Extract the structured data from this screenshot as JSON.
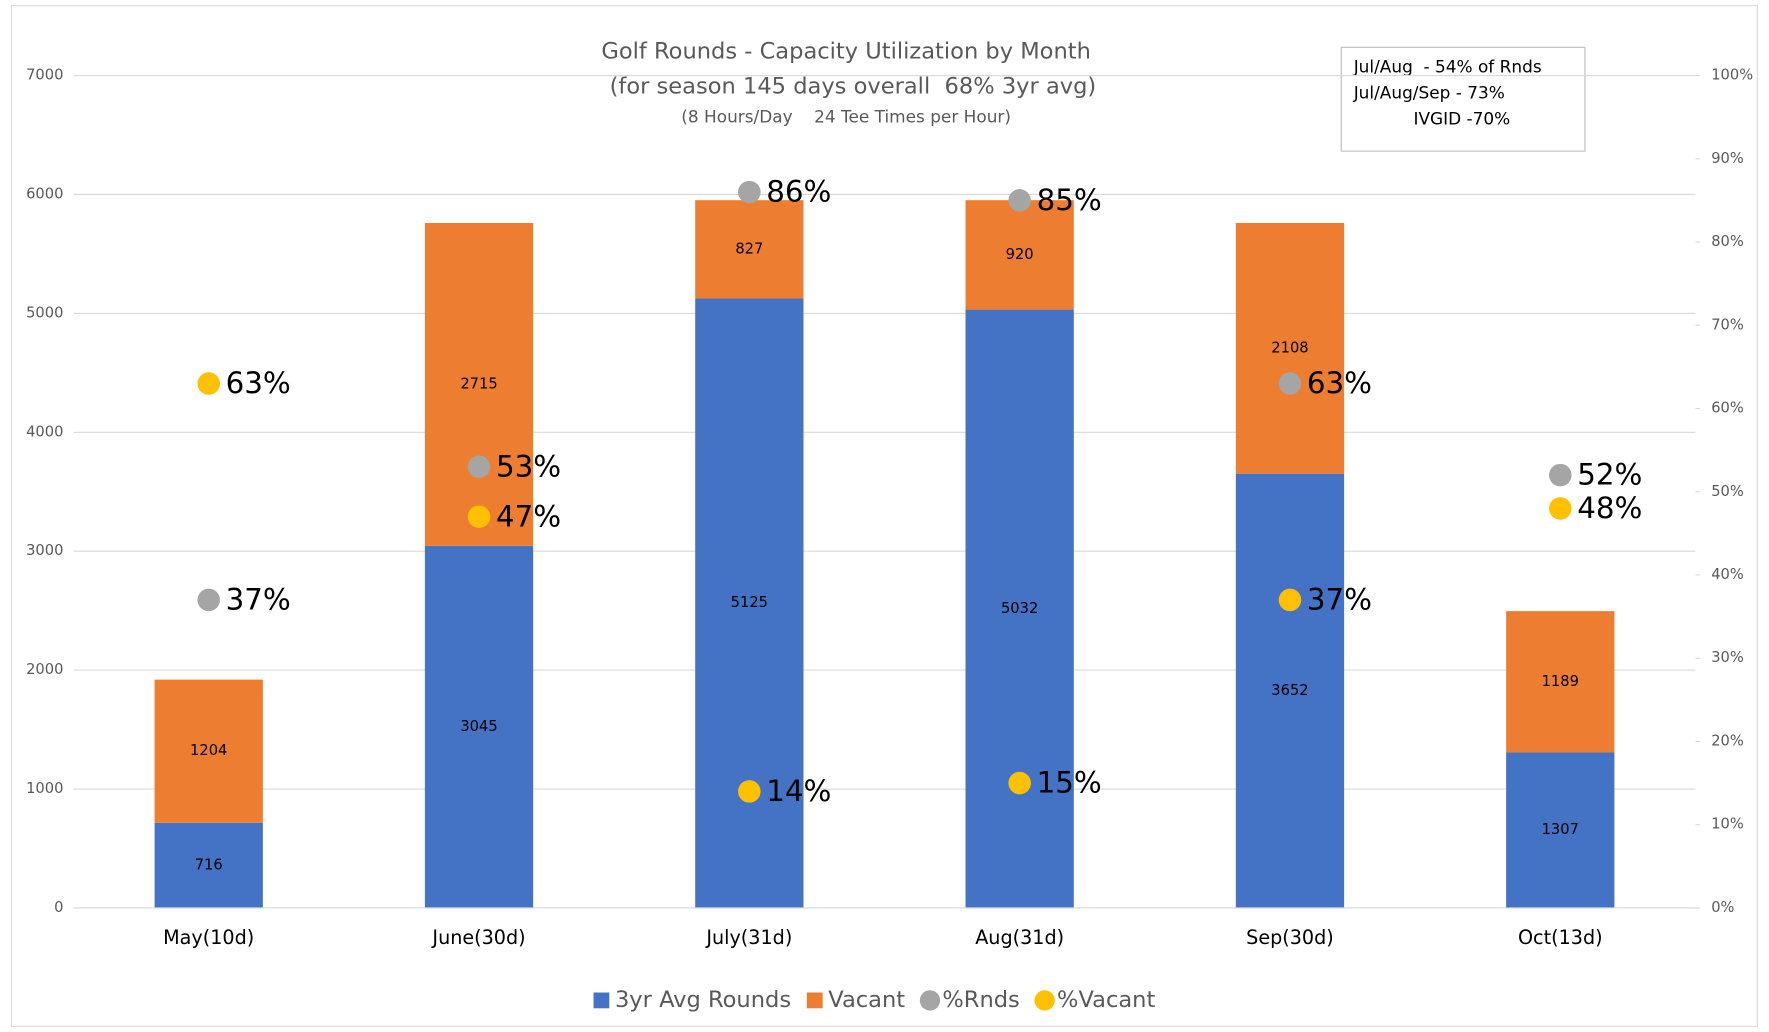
{
  "chart_data": {
    "type": "bar",
    "title": "Golf Rounds - Capacity Utilization by Month",
    "subtitle": [
      "(for season 145 days overall  68% 3yr avg)",
      "(8 Hours/Day    24 Tee Times per Hour)"
    ],
    "annotation": [
      "Jul/Aug  - 54% of Rnds",
      "Jul/Aug/Sep - 73%",
      "IVGID -70%"
    ],
    "categories": [
      "May(10d)",
      "June(30d)",
      "July(31d)",
      "Aug(31d)",
      "Sep(30d)",
      "Oct(13d)"
    ],
    "series": [
      {
        "name": "3yr Avg Rounds",
        "type": "bar",
        "color": "#4472c4",
        "values": [
          716,
          3045,
          5125,
          5032,
          3652,
          1307
        ]
      },
      {
        "name": "Vacant",
        "type": "bar",
        "color": "#ed7d31",
        "values": [
          1204,
          2715,
          827,
          920,
          2108,
          1189
        ]
      },
      {
        "name": "%Rnds",
        "type": "scatter",
        "axis": "y2",
        "color": "#a5a5a5",
        "values": [
          37,
          53,
          86,
          85,
          63,
          52
        ],
        "value_labels": [
          "37%",
          "53%",
          "86%",
          "85%",
          "63%",
          "52%"
        ]
      },
      {
        "name": "%Vacant",
        "type": "scatter",
        "axis": "y2",
        "color": "#ffc000",
        "values": [
          63,
          47,
          14,
          15,
          37,
          48
        ],
        "value_labels": [
          "63%",
          "47%",
          "14%",
          "15%",
          "37%",
          "48%"
        ]
      }
    ],
    "stacked": true,
    "ylim": [
      0,
      7000
    ],
    "yticks": [
      0,
      1000,
      2000,
      3000,
      4000,
      5000,
      6000,
      7000
    ],
    "y2lim": [
      0,
      100
    ],
    "y2ticks": [
      {
        "value": 0,
        "label": "0%"
      },
      {
        "value": 10,
        "label": "10%"
      },
      {
        "value": 20,
        "label": "20%"
      },
      {
        "value": 30,
        "label": "30%"
      },
      {
        "value": 40,
        "label": "40%"
      },
      {
        "value": 50,
        "label": "50%"
      },
      {
        "value": 60,
        "label": "60%"
      },
      {
        "value": 70,
        "label": "70%"
      },
      {
        "value": 80,
        "label": "80%"
      },
      {
        "value": 90,
        "label": "90%"
      },
      {
        "value": 100,
        "label": "100%"
      }
    ],
    "grid": true,
    "legend": "bottom"
  }
}
